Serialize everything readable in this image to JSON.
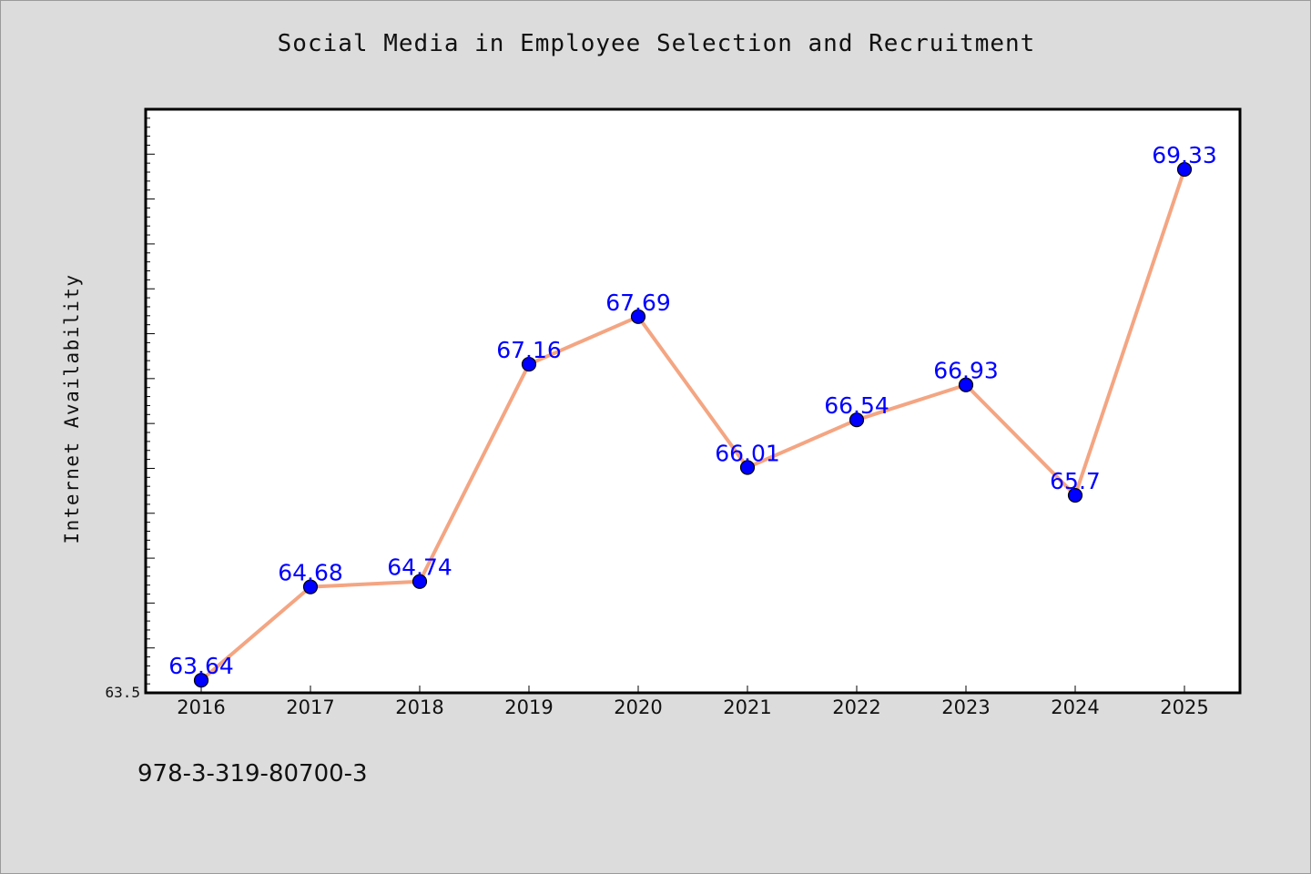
{
  "chart_data": {
    "type": "line",
    "title": "Social Media in Employee Selection and Recruitment",
    "xlabel": "",
    "ylabel": "Internet Availability",
    "categories": [
      "2016",
      "2017",
      "2018",
      "2019",
      "2020",
      "2021",
      "2022",
      "2023",
      "2024",
      "2025"
    ],
    "series": [
      {
        "values": [
          63.64,
          64.68,
          64.74,
          67.16,
          67.69,
          66.01,
          66.54,
          66.93,
          65.7,
          69.33
        ],
        "labels": [
          "63.64",
          "64.68",
          "64.74",
          "67.16",
          "67.69",
          "66.01",
          "66.54",
          "66.93",
          "65.7",
          "69.33"
        ]
      }
    ],
    "ylim": [
      63.5,
      70.0
    ],
    "yticks_labeled": [
      "63.5"
    ],
    "grid": false,
    "legend": "none",
    "colors": {
      "line": "#f4a582",
      "marker": "#0000ff",
      "data_label": "#0000ff",
      "background": "#dcdcdc",
      "plot_background": "#ffffff"
    }
  },
  "footer": {
    "identifier": "978-3-319-80700-3"
  }
}
